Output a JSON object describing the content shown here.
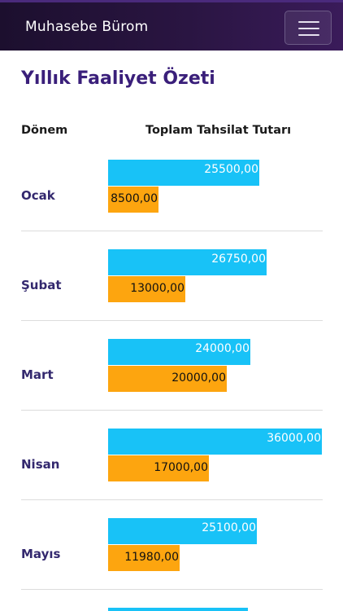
{
  "navbar": {
    "brand": "Muhasebe Bürom"
  },
  "page": {
    "title": "Yıllık Faaliyet Özeti"
  },
  "table": {
    "headers": [
      "Dönem",
      "Toplam Tahsilat Tutarı"
    ],
    "scale_max": 36000,
    "rows": [
      {
        "period": "Ocak",
        "total_label": "25500,00",
        "total": 25500,
        "paid_label": "8500,00",
        "paid": 8500
      },
      {
        "period": "Şubat",
        "total_label": "26750,00",
        "total": 26750,
        "paid_label": "13000,00",
        "paid": 13000
      },
      {
        "period": "Mart",
        "total_label": "24000,00",
        "total": 24000,
        "paid_label": "20000,00",
        "paid": 20000
      },
      {
        "period": "Nisan",
        "total_label": "36000,00",
        "total": 36000,
        "paid_label": "17000,00",
        "paid": 17000
      },
      {
        "period": "Mayıs",
        "total_label": "25100,00",
        "total": 25100,
        "paid_label": "11980,00",
        "paid": 11980
      }
    ],
    "partial_next_row_total": 23500
  },
  "colors": {
    "total_bar": "#18c2f7",
    "paid_bar": "#fda50f",
    "navbar": "#2a1542",
    "accent_text": "#33286e"
  }
}
